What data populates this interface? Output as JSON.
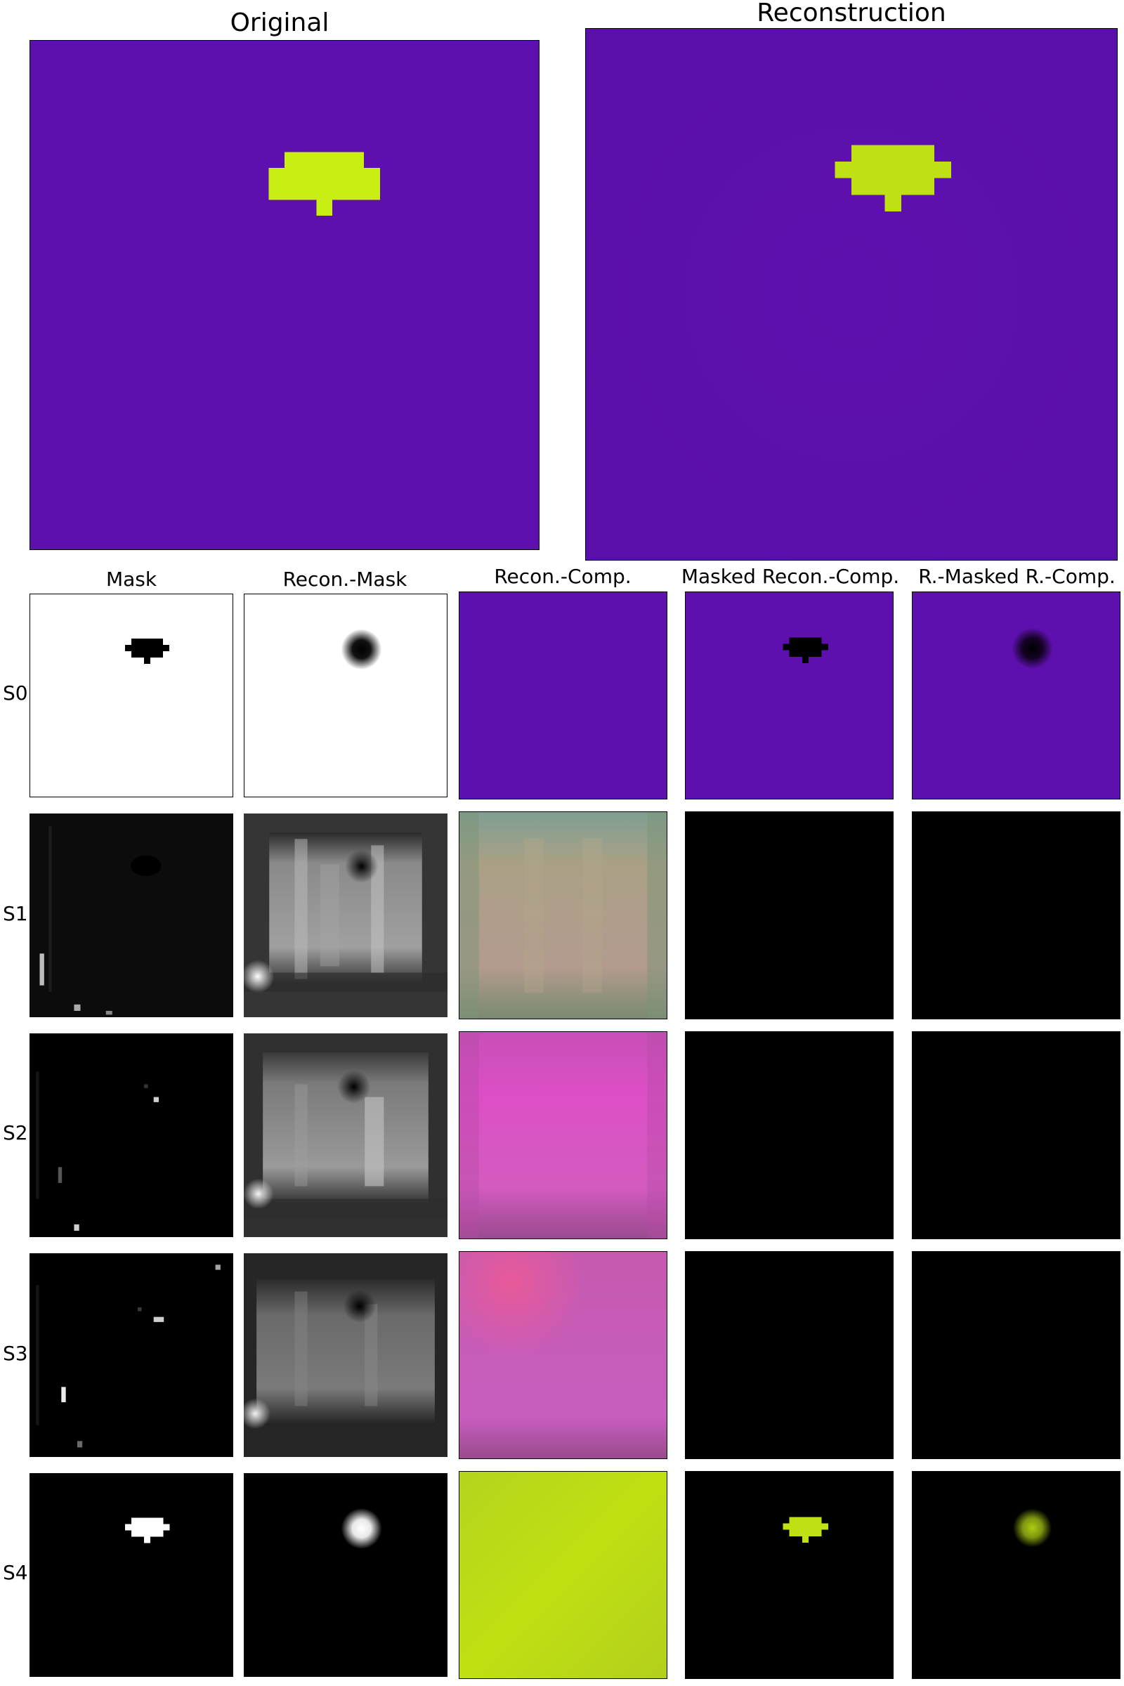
{
  "titles": {
    "original": "Original",
    "reconstruction": "Reconstruction"
  },
  "columns": [
    "Mask",
    "Recon.-Mask",
    "Recon.-Comp.",
    "Masked Recon.-Comp.",
    "R.-Masked R.-Comp."
  ],
  "rows": [
    "S0",
    "S1",
    "S2",
    "S3",
    "S4"
  ],
  "colors": {
    "background_purple": "#5e10ae",
    "object_yellow_green": "#c9ee14",
    "object_recon": "#bfe012",
    "s1_comp": "#a99c86",
    "s2_comp": "#d84ec4",
    "s3_comp": "#c85cbc",
    "s4_comp": "#bbdb16"
  }
}
